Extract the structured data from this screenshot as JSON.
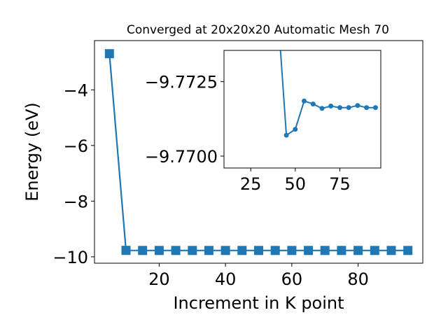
{
  "chart_data": [
    {
      "type": "line",
      "title": "Converged at 20x20x20 Automatic Mesh 70",
      "xlabel": "Increment in K point",
      "ylabel": "Energy (eV)",
      "xlim": [
        0.5,
        99.5
      ],
      "ylim": [
        -10.23,
        -2.23
      ],
      "xticks": [
        20,
        40,
        60,
        80
      ],
      "yticks": [
        -4,
        -6,
        -8,
        -10
      ],
      "xtick_labels": [
        "20",
        "40",
        "60",
        "80"
      ],
      "ytick_labels": [
        "−4",
        "−6",
        "−8",
        "−10"
      ],
      "grid": false,
      "marker": "square",
      "color": "#1f77b4",
      "series": [
        {
          "x": [
            5,
            10,
            15,
            20,
            25,
            30,
            35,
            40,
            45,
            50,
            55,
            60,
            65,
            70,
            75,
            80,
            85,
            90,
            95
          ],
          "y": [
            -2.7,
            -9.7693,
            -9.7713,
            -9.771,
            -9.77115,
            -9.7711,
            -9.77115,
            -9.7711,
            -9.7711,
            -9.7711,
            -9.7711,
            -9.7711,
            -9.7711,
            -9.7711,
            -9.7711,
            -9.7711,
            -9.7711,
            -9.7711,
            -9.7711
          ]
        }
      ]
    },
    {
      "type": "line",
      "title": "",
      "xlabel": "",
      "ylabel": "",
      "xlim": [
        10.0,
        98.0
      ],
      "ylim": [
        -9.7696,
        -9.77355
      ],
      "xticks": [
        25,
        50,
        75
      ],
      "yticks": [
        -9.7725,
        -9.77
      ],
      "xtick_labels": [
        "25",
        "50",
        "75"
      ],
      "ytick_labels": [
        "−9.7725",
        "−9.7700"
      ],
      "grid": false,
      "marker": "circle",
      "color": "#1f77b4",
      "series": [
        {
          "x": [
            40,
            45,
            50,
            55,
            60,
            65,
            70,
            75,
            80,
            85,
            90,
            95
          ],
          "y": [
            -9.775,
            -9.7707,
            -9.7709,
            -9.77185,
            -9.77175,
            -9.7716,
            -9.77168,
            -9.77163,
            -9.77163,
            -9.7717,
            -9.77163,
            -9.77163
          ]
        }
      ]
    }
  ]
}
